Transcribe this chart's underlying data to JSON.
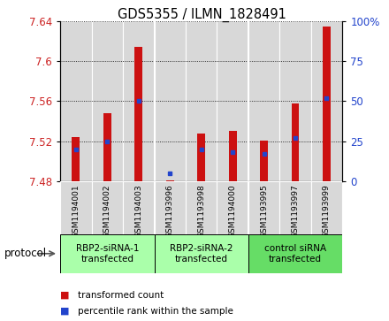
{
  "title": "GDS5355 / ILMN_1828491",
  "samples": [
    "GSM1194001",
    "GSM1194002",
    "GSM1194003",
    "GSM1193996",
    "GSM1193998",
    "GSM1194000",
    "GSM1193995",
    "GSM1193997",
    "GSM1193999"
  ],
  "red_values": [
    7.524,
    7.548,
    7.614,
    7.481,
    7.528,
    7.53,
    7.521,
    7.558,
    7.634
  ],
  "blue_percentiles": [
    20,
    25,
    50,
    5,
    20,
    18,
    17,
    27,
    52
  ],
  "y_min": 7.48,
  "y_max": 7.64,
  "y_ticks": [
    7.48,
    7.52,
    7.56,
    7.6,
    7.64
  ],
  "right_y_ticks": [
    0,
    25,
    50,
    75,
    100
  ],
  "groups": [
    {
      "label": "RBP2-siRNA-1\ntransfected",
      "indices": [
        0,
        1,
        2
      ],
      "color": "#aaffaa"
    },
    {
      "label": "RBP2-siRNA-2\ntransfected",
      "indices": [
        3,
        4,
        5
      ],
      "color": "#aaffaa"
    },
    {
      "label": "control siRNA\ntransfected",
      "indices": [
        6,
        7,
        8
      ],
      "color": "#66dd66"
    }
  ],
  "bar_width": 0.25,
  "red_color": "#cc1111",
  "blue_color": "#2244cc",
  "col_bg_color": "#d8d8d8",
  "legend_red": "transformed count",
  "legend_blue": "percentile rank within the sample",
  "protocol_label": "protocol"
}
